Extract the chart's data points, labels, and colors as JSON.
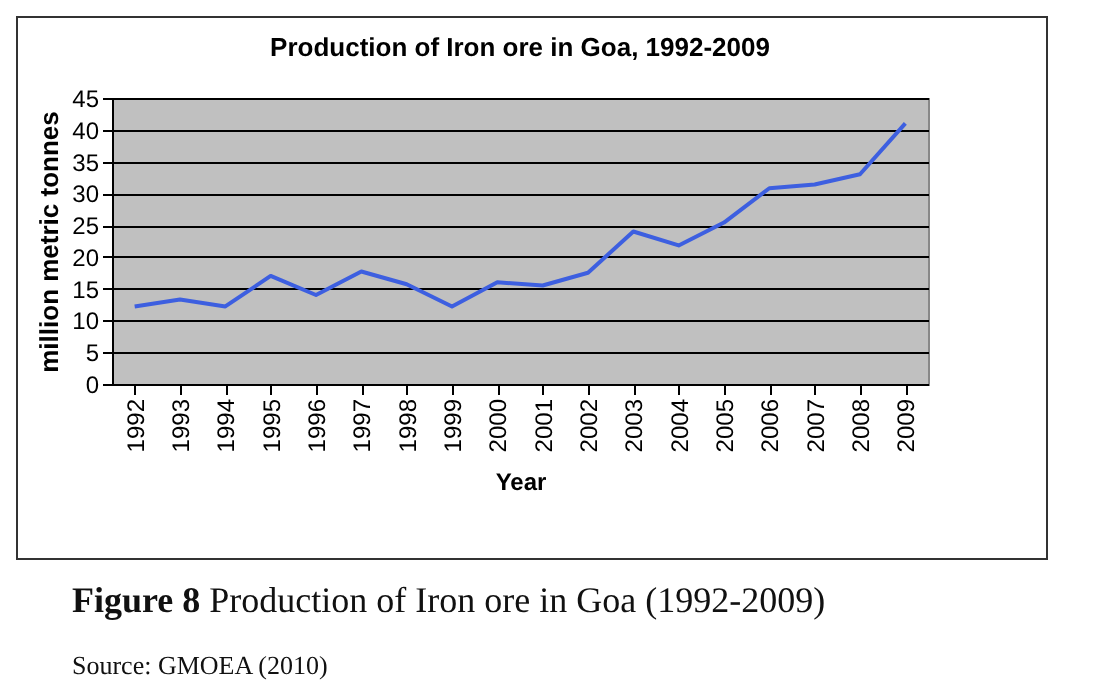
{
  "chart_data": {
    "type": "line",
    "title": "Production of Iron ore in Goa, 1992-2009",
    "xlabel": "Year",
    "ylabel": "million metric tonnes",
    "categories": [
      "1992",
      "1993",
      "1994",
      "1995",
      "1996",
      "1997",
      "1998",
      "1999",
      "2000",
      "2001",
      "2002",
      "2003",
      "2004",
      "2005",
      "2006",
      "2007",
      "2008",
      "2009"
    ],
    "series": [
      {
        "color": "#3d5fe0",
        "values": [
          12.2,
          13.3,
          12.2,
          17,
          14,
          17.7,
          15.7,
          12.2,
          16,
          15.5,
          17.5,
          24,
          21.8,
          25.4,
          30.8,
          31.4,
          33,
          41
        ]
      }
    ],
    "ylim": [
      0,
      45
    ],
    "yticks": [
      0,
      5,
      10,
      15,
      20,
      25,
      30,
      35,
      40,
      45
    ],
    "grid": "y",
    "marker": "none",
    "line_style": "solid",
    "annotations": [
      "Figure 8 Production of Iron ore in Goa (1992-2009)",
      "Source: GMOEA (2010)"
    ]
  }
}
